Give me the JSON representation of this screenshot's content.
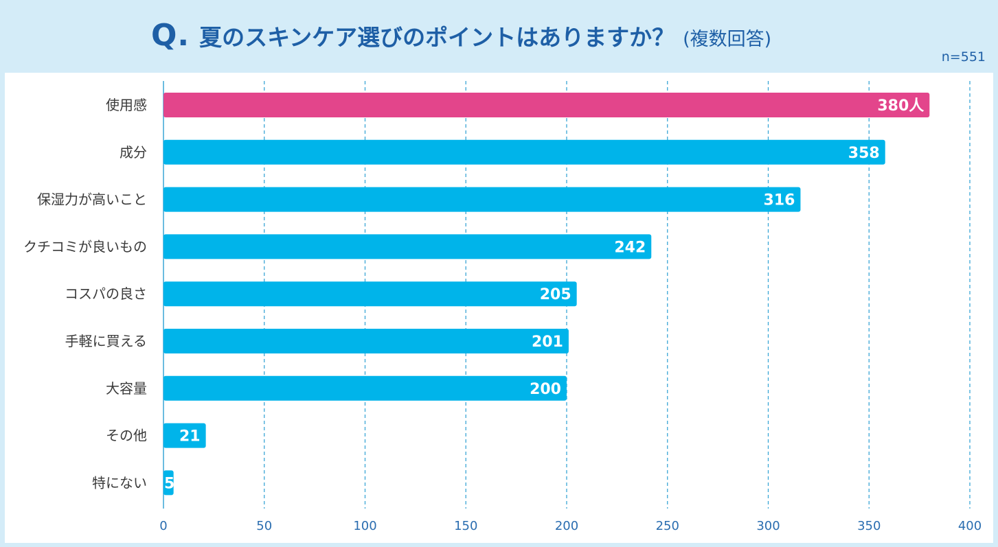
{
  "header": {
    "q_mark": "Q.",
    "title": "夏のスキンケア選びのポイントはありますか？",
    "subtitle": "(複数回答)",
    "n_label": "n=551"
  },
  "colors": {
    "background": "#d4ecf8",
    "title": "#1e5fa6",
    "bar": "#00b4ea",
    "highlight_bar": "#e3458b",
    "gridline": "#3aa6d6",
    "tick_label": "#2a6db0",
    "category_label": "#3a3a3a"
  },
  "chart_data": {
    "type": "bar",
    "orientation": "horizontal",
    "title": "夏のスキンケア選びのポイントはありますか？",
    "categories": [
      "使用感",
      "成分",
      "保湿力が高いこと",
      "クチコミが良いもの",
      "コスパの良さ",
      "手軽に買える",
      "大容量",
      "その他",
      "特にない"
    ],
    "values": [
      380,
      358,
      316,
      242,
      205,
      201,
      200,
      21,
      5
    ],
    "value_labels": [
      "380人",
      "358",
      "316",
      "242",
      "205",
      "201",
      "200",
      "21",
      "5"
    ],
    "highlight_index": 0,
    "xlim": [
      0,
      400
    ],
    "xticks": [
      0,
      50,
      100,
      150,
      200,
      250,
      300,
      350,
      400
    ],
    "grid": true,
    "xlabel": "",
    "ylabel": ""
  }
}
